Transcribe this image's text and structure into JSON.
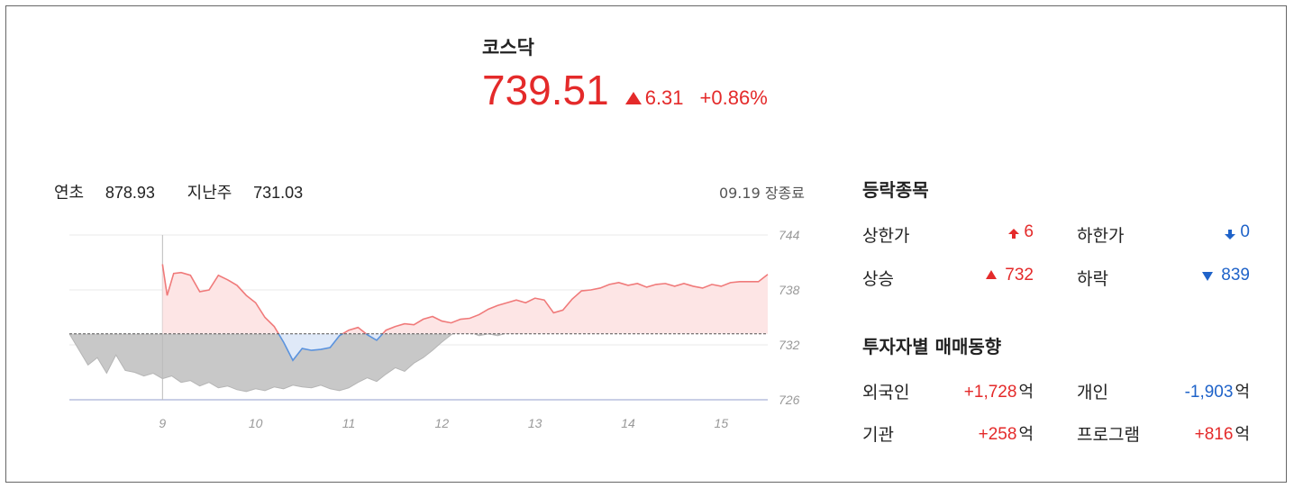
{
  "index": {
    "name": "코스닥",
    "price": "739.51",
    "change": "6.31",
    "change_rate": "+0.86%"
  },
  "reference": {
    "ytd_label": "연초",
    "ytd_value": "878.93",
    "lastweek_label": "지난주",
    "lastweek_value": "731.03"
  },
  "status": "09.19 장종료",
  "updown": {
    "title": "등락종목",
    "upper_limit_label": "상한가",
    "upper_limit_value": "6",
    "lower_limit_label": "하한가",
    "lower_limit_value": "0",
    "rise_label": "상승",
    "rise_value": "732",
    "fall_label": "하락",
    "fall_value": "839"
  },
  "investors": {
    "title": "투자자별 매매동향",
    "foreign_label": "외국인",
    "foreign_value": "+1,728",
    "individual_label": "개인",
    "individual_value": "-1,903",
    "institution_label": "기관",
    "institution_value": "+258",
    "program_label": "프로그램",
    "program_value": "+816",
    "unit": "억"
  },
  "colors": {
    "up": "#e42a2a",
    "down": "#1f63c9",
    "prev_day_area": "#c8c8c8"
  },
  "chart_data": {
    "type": "area",
    "y_ticks": [
      "744",
      "738",
      "732",
      "726"
    ],
    "x_ticks": [
      "9",
      "10",
      "11",
      "12",
      "13",
      "14",
      "15"
    ],
    "ylim": [
      726,
      744
    ],
    "reference_level": 733.2,
    "grid": true,
    "prev_day_series": {
      "x": [
        8.0,
        8.1,
        8.2,
        8.3,
        8.4,
        8.5,
        8.6,
        8.7,
        8.8,
        8.9,
        9.0,
        9.1,
        9.2,
        9.3,
        9.4,
        9.5,
        9.6,
        9.7,
        9.8,
        9.9,
        10.0,
        10.1,
        10.2,
        10.3,
        10.4,
        10.5,
        10.6,
        10.7,
        10.8,
        10.9,
        11.0,
        11.1,
        11.2,
        11.3,
        11.4,
        11.5,
        11.6,
        11.7,
        11.8,
        11.9,
        12.0,
        12.1,
        12.2,
        12.3,
        12.4,
        12.5,
        12.6,
        12.7,
        12.8,
        12.9,
        13.0
      ],
      "values": [
        733.2,
        731.5,
        729.8,
        730.6,
        728.9,
        730.9,
        729.2,
        729.0,
        728.6,
        728.9,
        728.3,
        728.6,
        727.9,
        728.1,
        727.5,
        727.9,
        727.3,
        727.5,
        727.1,
        726.9,
        727.2,
        727.0,
        727.4,
        727.2,
        727.6,
        727.4,
        727.3,
        727.6,
        727.2,
        727.0,
        727.3,
        727.9,
        728.4,
        728.0,
        728.8,
        729.5,
        729.1,
        730.0,
        730.6,
        731.4,
        732.3,
        733.1,
        733.8,
        733.4,
        733.0,
        733.2,
        733.0,
        733.3,
        733.2,
        733.4,
        733.3
      ]
    },
    "today_series": {
      "x": [
        9.0,
        9.05,
        9.12,
        9.2,
        9.3,
        9.4,
        9.5,
        9.6,
        9.7,
        9.8,
        9.9,
        10.0,
        10.1,
        10.2,
        10.3,
        10.4,
        10.5,
        10.6,
        10.7,
        10.8,
        10.9,
        11.0,
        11.1,
        11.2,
        11.3,
        11.4,
        11.5,
        11.6,
        11.7,
        11.8,
        11.9,
        12.0,
        12.1,
        12.2,
        12.3,
        12.4,
        12.5,
        12.6,
        12.7,
        12.8,
        12.9,
        13.0,
        13.1,
        13.2,
        13.3,
        13.4,
        13.5,
        13.6,
        13.7,
        13.8,
        13.9,
        14.0,
        14.1,
        14.2,
        14.3,
        14.4,
        14.5,
        14.6,
        14.7,
        14.8,
        14.9,
        15.0,
        15.1,
        15.2,
        15.3,
        15.4,
        15.5
      ],
      "values": [
        740.8,
        737.4,
        739.8,
        739.9,
        739.6,
        737.8,
        738.0,
        739.6,
        739.1,
        738.5,
        737.4,
        736.6,
        735.0,
        734.0,
        732.3,
        730.3,
        731.6,
        731.4,
        731.5,
        731.7,
        733.0,
        733.6,
        733.9,
        733.1,
        732.5,
        733.6,
        734.0,
        734.3,
        734.2,
        734.8,
        735.1,
        734.6,
        734.4,
        734.8,
        734.9,
        735.3,
        735.9,
        736.3,
        736.6,
        736.9,
        736.6,
        737.1,
        736.9,
        735.5,
        735.8,
        737.0,
        737.9,
        738.0,
        738.2,
        738.6,
        738.8,
        738.5,
        738.7,
        738.3,
        738.6,
        738.7,
        738.4,
        738.7,
        738.4,
        738.2,
        738.6,
        738.4,
        738.8,
        738.9,
        738.9,
        738.9,
        739.7
      ]
    }
  }
}
